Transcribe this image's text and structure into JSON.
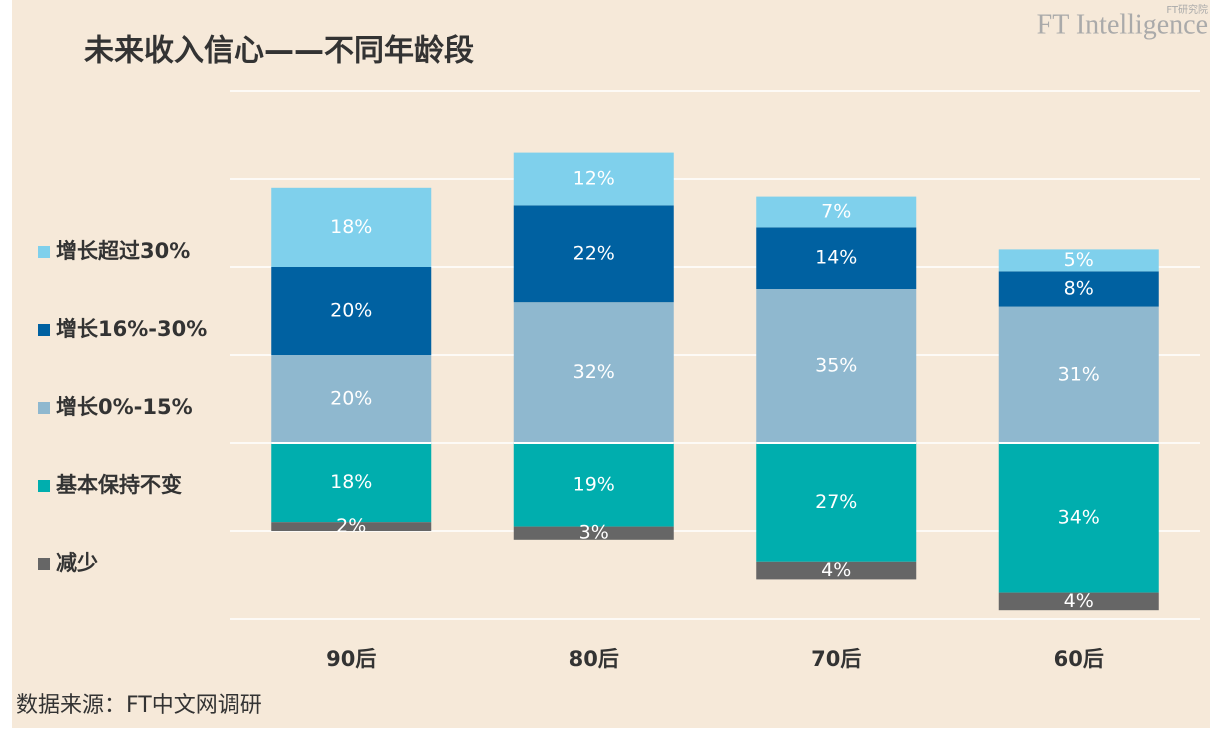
{
  "chart_data": {
    "type": "diverging-stacked-bar",
    "title": "未来收入信心——不同年龄段",
    "source": "数据来源：FT中文网调研",
    "logo": "FT Intelligence",
    "logo_sub": "FT研究院",
    "categories": [
      "90后",
      "80后",
      "70后",
      "60后"
    ],
    "series": [
      {
        "name": "增长超过30%",
        "color": "#7fd0ec",
        "side": "above",
        "values": [
          18,
          12,
          7,
          5
        ],
        "value_labels": [
          "18%",
          "12%",
          "7%",
          "5%"
        ]
      },
      {
        "name": "增长16%-30%",
        "color": "#0061a1",
        "side": "above",
        "values": [
          20,
          22,
          14,
          8
        ],
        "value_labels": [
          "20%",
          "22%",
          "14%",
          "8%"
        ]
      },
      {
        "name": "增长0%-15%",
        "color": "#8fb8cf",
        "side": "above",
        "values": [
          20,
          32,
          35,
          31
        ],
        "value_labels": [
          "20%",
          "32%",
          "35%",
          "31%"
        ]
      },
      {
        "name": "基本保持不变",
        "color": "#00aeae",
        "side": "below",
        "values": [
          18,
          19,
          27,
          34
        ],
        "value_labels": [
          "18%",
          "19%",
          "27%",
          "34%"
        ]
      },
      {
        "name": "减少",
        "color": "#666666",
        "side": "below",
        "values": [
          2,
          3,
          4,
          4
        ],
        "value_labels": [
          "2%",
          "3%",
          "4%",
          "4%"
        ]
      }
    ],
    "ylim": [
      -40,
      80
    ],
    "yticks": [
      -40,
      -20,
      0,
      20,
      40,
      60,
      80
    ],
    "grid": true
  }
}
